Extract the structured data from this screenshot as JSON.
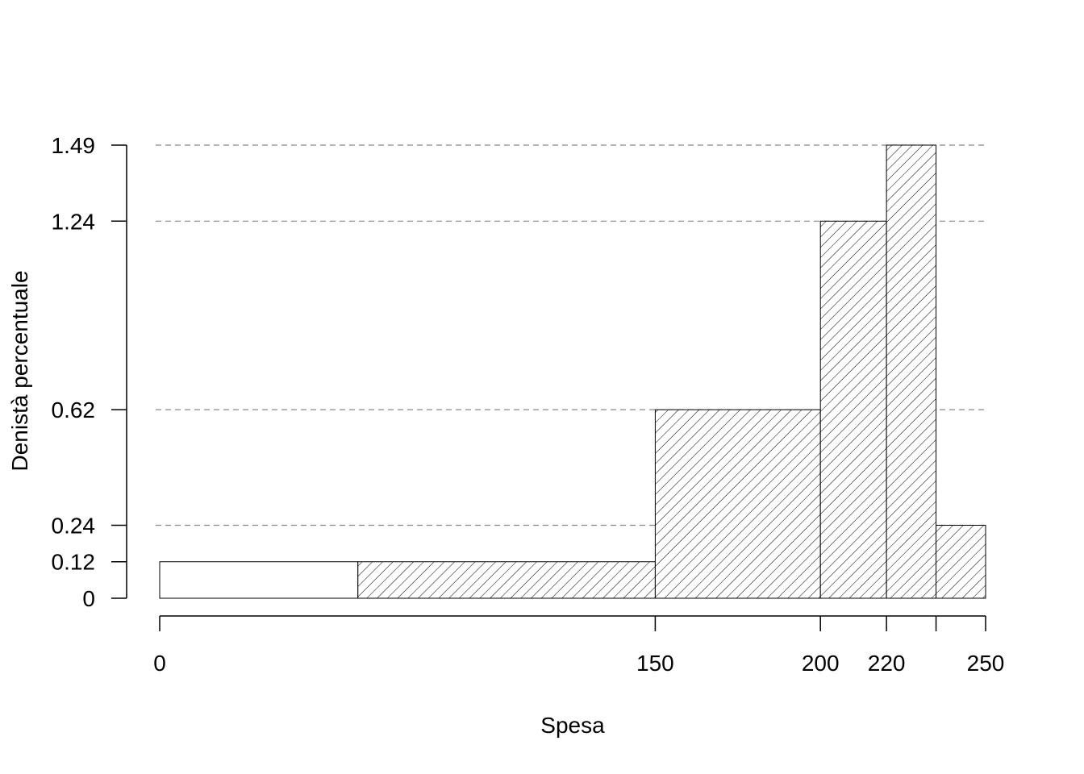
{
  "chart_data": {
    "type": "histogram",
    "title": "",
    "xlabel": "Spesa",
    "ylabel": "Denistà percentuale",
    "xlim": [
      0,
      250
    ],
    "ylim": [
      0,
      1.49
    ],
    "bins": [
      {
        "from": 0,
        "to": 60,
        "density": 0.12,
        "hatched": false
      },
      {
        "from": 60,
        "to": 150,
        "density": 0.12,
        "hatched": true
      },
      {
        "from": 150,
        "to": 200,
        "density": 0.62,
        "hatched": true
      },
      {
        "from": 200,
        "to": 220,
        "density": 1.24,
        "hatched": true
      },
      {
        "from": 220,
        "to": 235,
        "density": 1.49,
        "hatched": true
      },
      {
        "from": 235,
        "to": 250,
        "density": 0.24,
        "hatched": true
      }
    ],
    "x_ticks": [
      0,
      150,
      200,
      220,
      235,
      250
    ],
    "x_tick_labels": [
      "0",
      "150",
      "200",
      "220",
      "",
      "250"
    ],
    "y_ticks": [
      0,
      0.12,
      0.24,
      0.62,
      1.24,
      1.49
    ],
    "y_tick_labels": [
      "0",
      "0.12",
      "0.24",
      "0.62",
      "1.24",
      "1.49"
    ],
    "reference_lines": [
      0.24,
      0.62,
      1.24,
      1.49
    ],
    "colors": {
      "axis": "#000000",
      "bar_fill": "#ffffff",
      "hatch": "#000000",
      "reference_line": "#888888"
    }
  }
}
